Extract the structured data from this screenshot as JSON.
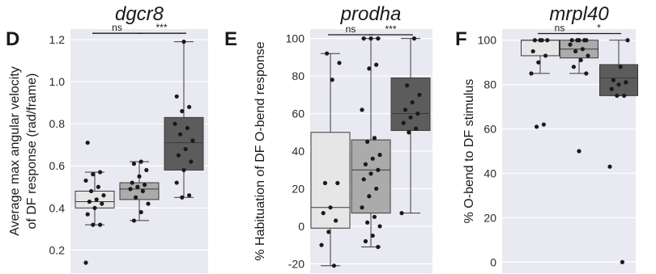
{
  "chart_data": [
    {
      "type": "box",
      "panel_letter": "D",
      "title": "dgcr8",
      "ylabel_lines": [
        "Average max angular velocity",
        "of DF response (rad/frame)"
      ],
      "ylim": [
        0.09,
        1.25
      ],
      "yticks": [
        0.2,
        0.4,
        0.6,
        0.8,
        1.0,
        1.2
      ],
      "ytick_labels": [
        "0.2",
        "0.4",
        "0.6",
        "0.8",
        "1.0",
        "1.2"
      ],
      "grid": true,
      "box_colors": [
        "#e6e6e6",
        "#ababab",
        "#5c5c5c"
      ],
      "boxes": [
        {
          "q1": 0.4,
          "median": 0.43,
          "q3": 0.48,
          "whisker_low": 0.32,
          "whisker_high": 0.57
        },
        {
          "q1": 0.44,
          "median": 0.49,
          "q3": 0.52,
          "whisker_low": 0.34,
          "whisker_high": 0.62
        },
        {
          "q1": 0.58,
          "median": 0.71,
          "q3": 0.83,
          "whisker_low": 0.45,
          "whisker_high": 1.19
        }
      ],
      "points": [
        [
          0.14,
          0.32,
          0.32,
          0.37,
          0.4,
          0.42,
          0.43,
          0.44,
          0.46,
          0.48,
          0.5,
          0.53,
          0.56,
          0.57,
          0.71
        ],
        [
          0.34,
          0.38,
          0.42,
          0.45,
          0.48,
          0.49,
          0.5,
          0.51,
          0.52,
          0.55,
          0.58,
          0.61,
          0.62
        ],
        [
          0.45,
          0.46,
          0.52,
          0.58,
          0.62,
          0.65,
          0.68,
          0.72,
          0.75,
          0.78,
          0.8,
          0.86,
          0.88,
          0.93,
          1.19
        ]
      ],
      "comparisons": [
        {
          "from": 0,
          "to": 1,
          "label": "ns",
          "y": 1.23
        },
        {
          "from": 1,
          "to": 2,
          "label": "***",
          "y": 1.23
        }
      ]
    },
    {
      "type": "box",
      "panel_letter": "E",
      "title": "prodha",
      "ylabel_lines": [
        "% Habituation of DF O-bend response"
      ],
      "ylim": [
        -25,
        105
      ],
      "yticks": [
        -20,
        0,
        20,
        40,
        60,
        80,
        100
      ],
      "ytick_labels": [
        "-20",
        "0",
        "20",
        "40",
        "60",
        "80",
        "100"
      ],
      "grid": true,
      "box_colors": [
        "#e6e6e6",
        "#ababab",
        "#5c5c5c"
      ],
      "boxes": [
        {
          "q1": -1,
          "median": 10,
          "q3": 50,
          "whisker_low": -21,
          "whisker_high": 92
        },
        {
          "q1": 7,
          "median": 30,
          "q3": 46,
          "whisker_low": -11,
          "whisker_high": 100
        },
        {
          "q1": 51,
          "median": 60,
          "q3": 79,
          "whisker_low": 7,
          "whisker_high": 100
        }
      ],
      "points": [
        [
          -21,
          -10,
          -3,
          3,
          7,
          10,
          23,
          23,
          78,
          87,
          92
        ],
        [
          -11,
          -8,
          -5,
          0,
          2,
          5,
          10,
          16,
          20,
          25,
          28,
          30,
          33,
          36,
          38,
          45,
          47,
          62,
          84,
          86,
          100,
          100,
          100
        ],
        [
          7,
          50,
          52,
          55,
          58,
          60,
          62,
          66,
          70,
          75,
          100
        ]
      ],
      "comparisons": [
        {
          "from": 0,
          "to": 1,
          "label": "ns",
          "y": 102
        },
        {
          "from": 1,
          "to": 2,
          "label": "***",
          "y": 102
        }
      ]
    },
    {
      "type": "box",
      "panel_letter": "F",
      "title": "mrpl40",
      "ylabel_lines": [
        "% O-bend to DF stimulus"
      ],
      "ylim": [
        -5,
        105
      ],
      "yticks": [
        0,
        20,
        40,
        60,
        80,
        100
      ],
      "ytick_labels": [
        "0",
        "20",
        "40",
        "60",
        "80",
        "100"
      ],
      "grid": true,
      "box_colors": [
        "#e6e6e6",
        "#ababab",
        "#5c5c5c"
      ],
      "boxes": [
        {
          "q1": 93,
          "median": 100,
          "q3": 100,
          "whisker_low": 85,
          "whisker_high": 100
        },
        {
          "q1": 92,
          "median": 96,
          "q3": 100,
          "whisker_low": 85,
          "whisker_high": 100
        },
        {
          "q1": 75,
          "median": 83,
          "q3": 89,
          "whisker_low": 75,
          "whisker_high": 100
        }
      ],
      "points": [
        [
          61,
          62,
          85,
          90,
          93,
          95,
          100,
          100,
          100,
          100
        ],
        [
          50,
          85,
          88,
          91,
          93,
          95,
          96,
          98,
          100,
          100,
          100,
          100,
          100
        ],
        [
          0,
          43,
          75,
          75,
          78,
          80,
          81,
          82,
          88,
          100
        ]
      ],
      "comparisons": [
        {
          "from": 0,
          "to": 1,
          "label": "ns",
          "y": 103
        },
        {
          "from": 1,
          "to": 2,
          "label": "*",
          "y": 103
        }
      ]
    }
  ]
}
